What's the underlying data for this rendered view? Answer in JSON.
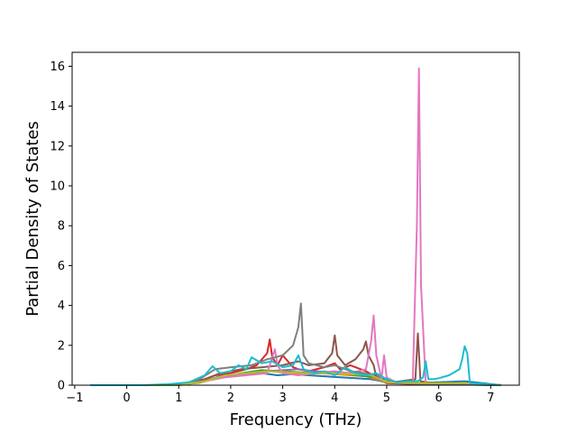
{
  "chart_data": {
    "type": "line",
    "title": "",
    "xlabel": "Frequency (THz)",
    "ylabel": "Partial Density of States",
    "xlim": [
      -1.05,
      7.55
    ],
    "ylim": [
      0,
      16.7
    ],
    "xticks": [
      -1,
      0,
      1,
      2,
      3,
      4,
      5,
      6,
      7
    ],
    "yticks": [
      0,
      2,
      4,
      6,
      8,
      10,
      12,
      14,
      16
    ],
    "grid": false,
    "legend": "none",
    "series": [
      {
        "color": "#1f77b4",
        "x": [
          -0.7,
          0.8,
          1.2,
          1.6,
          1.8,
          2.0,
          2.3,
          2.6,
          2.9,
          3.2,
          3.5,
          3.8,
          4.1,
          4.4,
          4.7,
          5.0,
          5.5,
          6.0,
          6.5,
          7.2
        ],
        "y": [
          0,
          0,
          0.08,
          0.3,
          0.45,
          0.5,
          0.55,
          0.6,
          0.5,
          0.55,
          0.5,
          0.45,
          0.4,
          0.35,
          0.3,
          0.15,
          0.1,
          0.15,
          0.2,
          0
        ]
      },
      {
        "color": "#ff7f0e",
        "x": [
          -0.7,
          0.9,
          1.3,
          1.7,
          2.0,
          2.4,
          2.8,
          3.1,
          3.4,
          3.7,
          4.0,
          4.3,
          4.6,
          4.9,
          5.3,
          5.8,
          6.5,
          7.2
        ],
        "y": [
          0,
          0,
          0.1,
          0.35,
          0.5,
          0.65,
          0.7,
          0.6,
          0.55,
          0.6,
          0.55,
          0.5,
          0.45,
          0.2,
          0.1,
          0.05,
          0.05,
          0
        ]
      },
      {
        "color": "#2ca02c",
        "x": [
          -0.7,
          0.9,
          1.4,
          1.8,
          2.2,
          2.6,
          3.0,
          3.3,
          3.6,
          4.0,
          4.4,
          4.8,
          5.2,
          5.8,
          6.4,
          7.2
        ],
        "y": [
          0,
          0,
          0.12,
          0.4,
          0.6,
          0.75,
          0.7,
          0.65,
          0.6,
          0.65,
          0.5,
          0.4,
          0.15,
          0.05,
          0.05,
          0
        ]
      },
      {
        "color": "#d62728",
        "x": [
          -0.7,
          1.0,
          1.4,
          1.7,
          2.0,
          2.3,
          2.5,
          2.7,
          2.75,
          2.8,
          2.9,
          3.0,
          3.1,
          3.2,
          3.3,
          3.5,
          3.8,
          4.0,
          4.1,
          4.3,
          4.6,
          4.8,
          5.0,
          5.6,
          6.5,
          7.2
        ],
        "y": [
          0,
          0,
          0.2,
          0.5,
          0.6,
          0.8,
          1.0,
          1.6,
          2.3,
          1.4,
          1.0,
          1.5,
          1.2,
          0.9,
          0.8,
          0.7,
          0.9,
          1.1,
          0.8,
          1.0,
          0.7,
          0.4,
          0.1,
          0.05,
          0.05,
          0
        ]
      },
      {
        "color": "#9467bd",
        "x": [
          -0.7,
          1.0,
          1.5,
          1.9,
          2.3,
          2.7,
          3.0,
          3.3,
          3.6,
          4.0,
          4.4,
          4.8,
          5.2,
          6.0,
          7.2
        ],
        "y": [
          0,
          0,
          0.2,
          0.45,
          0.6,
          0.7,
          0.75,
          0.8,
          0.7,
          0.65,
          0.6,
          0.5,
          0.15,
          0.05,
          0
        ]
      },
      {
        "color": "#8c564b",
        "x": [
          -0.7,
          1.0,
          1.5,
          1.8,
          2.2,
          2.6,
          3.0,
          3.3,
          3.5,
          3.8,
          3.95,
          4.0,
          4.05,
          4.2,
          4.4,
          4.55,
          4.6,
          4.65,
          4.75,
          4.8,
          5.0,
          5.55,
          5.6,
          5.65,
          6.0,
          6.5,
          7.2
        ],
        "y": [
          0,
          0,
          0.3,
          0.6,
          0.8,
          0.9,
          1.0,
          1.2,
          1.0,
          1.1,
          1.6,
          2.5,
          1.5,
          1.0,
          1.3,
          1.8,
          2.2,
          1.5,
          1.0,
          0.4,
          0.1,
          0.3,
          2.6,
          0.2,
          0.05,
          0.05,
          0
        ]
      },
      {
        "color": "#e377c2",
        "x": [
          -0.7,
          1.0,
          1.5,
          1.9,
          2.3,
          2.7,
          2.85,
          2.9,
          3.0,
          3.3,
          3.6,
          4.0,
          4.3,
          4.6,
          4.7,
          4.75,
          4.8,
          4.9,
          4.95,
          5.0,
          5.2,
          5.5,
          5.58,
          5.62,
          5.66,
          5.75,
          6.0,
          6.5,
          7.2
        ],
        "y": [
          0,
          0,
          0.2,
          0.4,
          0.5,
          0.6,
          1.8,
          1.0,
          0.6,
          0.5,
          0.6,
          0.7,
          0.6,
          0.8,
          2.2,
          3.5,
          1.5,
          0.3,
          1.5,
          0.4,
          0.1,
          0.1,
          8.0,
          15.9,
          5.0,
          0.1,
          0.05,
          0.05,
          0
        ]
      },
      {
        "color": "#7f7f7f",
        "x": [
          -0.7,
          1.0,
          1.4,
          1.7,
          2.0,
          2.4,
          2.7,
          3.0,
          3.2,
          3.3,
          3.35,
          3.4,
          3.5,
          3.8,
          4.0,
          4.3,
          4.6,
          4.9,
          5.2,
          6.0,
          7.2
        ],
        "y": [
          0,
          0,
          0.3,
          0.8,
          0.9,
          1.0,
          1.3,
          1.5,
          2.0,
          2.9,
          4.1,
          1.5,
          1.1,
          0.9,
          1.0,
          0.7,
          0.6,
          0.2,
          0.1,
          0.05,
          0
        ]
      },
      {
        "color": "#bcbd22",
        "x": [
          -0.7,
          1.0,
          1.5,
          1.9,
          2.3,
          2.7,
          3.1,
          3.5,
          3.9,
          4.3,
          4.7,
          5.0,
          5.7,
          6.5,
          7.2
        ],
        "y": [
          0,
          0,
          0.2,
          0.5,
          0.6,
          0.7,
          0.65,
          0.6,
          0.6,
          0.55,
          0.5,
          0.15,
          0.1,
          0.1,
          0
        ]
      },
      {
        "color": "#17becf",
        "x": [
          -0.7,
          0.3,
          0.8,
          1.2,
          1.5,
          1.65,
          1.8,
          2.0,
          2.15,
          2.3,
          2.4,
          2.6,
          2.8,
          3.0,
          3.2,
          3.3,
          3.4,
          3.6,
          3.8,
          4.0,
          4.2,
          4.4,
          4.6,
          4.8,
          5.0,
          5.2,
          5.4,
          5.6,
          5.7,
          5.75,
          5.8,
          5.9,
          6.0,
          6.2,
          6.4,
          6.45,
          6.5,
          6.55,
          6.6,
          7.2
        ],
        "y": [
          0,
          0,
          0.05,
          0.15,
          0.5,
          0.95,
          0.6,
          0.7,
          1.0,
          0.8,
          1.4,
          1.1,
          1.2,
          0.9,
          1.0,
          1.5,
          0.8,
          0.6,
          0.7,
          0.5,
          0.9,
          0.6,
          0.5,
          0.6,
          0.3,
          0.15,
          0.2,
          0.2,
          0.4,
          1.2,
          0.3,
          0.3,
          0.35,
          0.5,
          0.8,
          1.3,
          1.95,
          1.6,
          0.1,
          0
        ]
      }
    ]
  }
}
